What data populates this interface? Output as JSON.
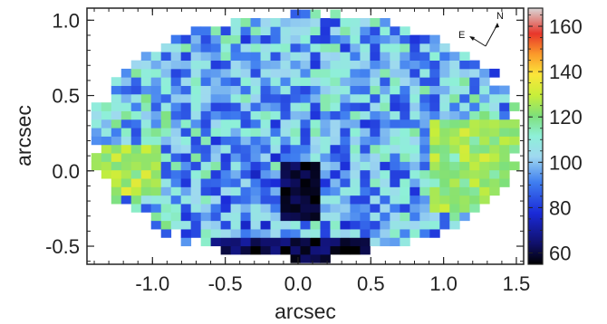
{
  "chart_data": {
    "type": "heatmap",
    "title": "",
    "xlabel": "arcsec",
    "ylabel": "arcsec",
    "xlim": [
      -1.45,
      1.55
    ],
    "ylim": [
      -0.62,
      1.08
    ],
    "x_ticks": [
      {
        "value": -1.0,
        "label": "-1.0"
      },
      {
        "value": -0.5,
        "label": "-0.5"
      },
      {
        "value": 0.0,
        "label": "0.0"
      },
      {
        "value": 0.5,
        "label": "0.5"
      },
      {
        "value": 1.0,
        "label": "1.0"
      },
      {
        "value": 1.5,
        "label": "1.5"
      }
    ],
    "y_ticks": [
      {
        "value": -0.5,
        "label": "-0.5"
      },
      {
        "value": 0.0,
        "label": "0.0"
      },
      {
        "value": 0.5,
        "label": "0.5"
      },
      {
        "value": 1.0,
        "label": "1.0"
      }
    ],
    "colorbar": {
      "range": [
        55,
        168
      ],
      "ticks": [
        {
          "value": 60,
          "label": "60"
        },
        {
          "value": 80,
          "label": "80"
        },
        {
          "value": 100,
          "label": "100"
        },
        {
          "value": 120,
          "label": "120"
        },
        {
          "value": 140,
          "label": "140"
        },
        {
          "value": 160,
          "label": "160"
        }
      ]
    },
    "map": {
      "x_range": [
        -1.42,
        1.52
      ],
      "y_range": [
        -0.61,
        1.07
      ],
      "cols": 43,
      "rows": 30,
      "mean_value": 98,
      "note_regions": [
        {
          "desc": "low-value core",
          "x": [
            -0.1,
            0.15
          ],
          "y": [
            -0.35,
            0.05
          ],
          "value": 62
        },
        {
          "desc": "low-value bottom band",
          "x": [
            -0.6,
            0.5
          ],
          "y": [
            -0.61,
            -0.45
          ],
          "value": 66
        },
        {
          "desc": "high-value east lobe",
          "x": [
            -1.4,
            -0.95
          ],
          "y": [
            -0.15,
            0.2
          ],
          "value": 122
        },
        {
          "desc": "high-value west lobe",
          "x": [
            0.9,
            1.5
          ],
          "y": [
            -0.3,
            0.35
          ],
          "value": 118
        }
      ]
    },
    "compass": {
      "north": "N",
      "east": "E"
    },
    "grid": false
  }
}
